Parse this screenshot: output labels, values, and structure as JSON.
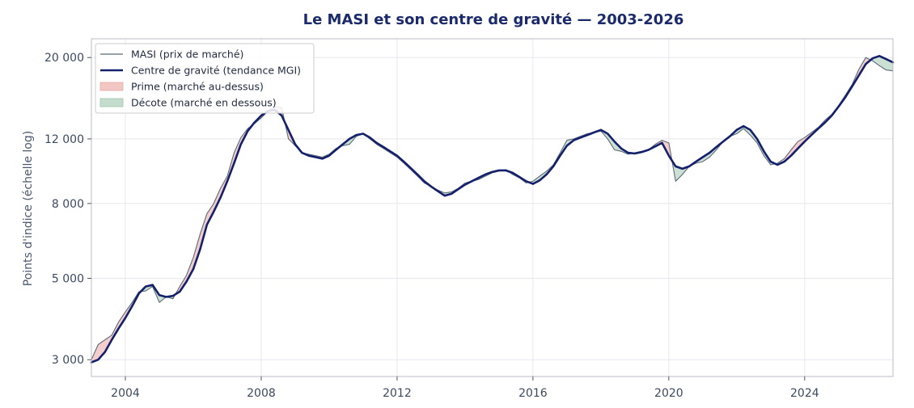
{
  "chart_data": {
    "type": "area",
    "title": "Le MASI et son centre de gravité — 2003-2026",
    "xlabel": "",
    "ylabel": "Points d'indice (échelle log)",
    "y_scale": "log",
    "xlim": [
      2003.0,
      2026.6
    ],
    "ylim": [
      2700,
      22500
    ],
    "grid": true,
    "legend_position": "top-left",
    "x_ticks": [
      {
        "value": 2004,
        "label": "2004"
      },
      {
        "value": 2008,
        "label": "2008"
      },
      {
        "value": 2012,
        "label": "2012"
      },
      {
        "value": 2016,
        "label": "2016"
      },
      {
        "value": 2020,
        "label": "2020"
      },
      {
        "value": 2024,
        "label": "2024"
      }
    ],
    "y_ticks": [
      {
        "value": 3000,
        "label": "3 000"
      },
      {
        "value": 5000,
        "label": "5 000"
      },
      {
        "value": 8000,
        "label": "8 000"
      },
      {
        "value": 12000,
        "label": "12 000"
      },
      {
        "value": 20000,
        "label": "20 000"
      }
    ],
    "colors": {
      "masi": "#5a6b78",
      "trend": "#14206b",
      "premium": "#f2c6c3",
      "discount": "#c3dccd",
      "grid": "#e6e8ee",
      "frame": "#b8bcc8",
      "title": "#1b2a6b"
    },
    "legend": [
      {
        "key": "masi",
        "label": "MASI (prix de marché)",
        "symbol": "thin-line"
      },
      {
        "key": "trend",
        "label": "Centre de gravité (tendance MGI)",
        "symbol": "thick-line"
      },
      {
        "key": "premium",
        "label": "Prime (marché au-dessus)",
        "symbol": "patch"
      },
      {
        "key": "discount",
        "label": "Décote (marché en dessous)",
        "symbol": "patch"
      }
    ],
    "series": [
      {
        "name": "MASI (prix de marché)",
        "x": [
          2003.0,
          2003.2,
          2003.4,
          2003.6,
          2003.8,
          2004.0,
          2004.2,
          2004.4,
          2004.6,
          2004.8,
          2005.0,
          2005.2,
          2005.4,
          2005.6,
          2005.8,
          2006.0,
          2006.2,
          2006.4,
          2006.6,
          2006.8,
          2007.0,
          2007.2,
          2007.4,
          2007.6,
          2007.8,
          2008.0,
          2008.2,
          2008.4,
          2008.6,
          2008.8,
          2009.0,
          2009.2,
          2009.4,
          2009.6,
          2009.8,
          2010.0,
          2010.2,
          2010.4,
          2010.6,
          2010.8,
          2011.0,
          2011.2,
          2011.4,
          2011.6,
          2011.8,
          2012.0,
          2012.2,
          2012.4,
          2012.6,
          2012.8,
          2013.0,
          2013.2,
          2013.4,
          2013.6,
          2013.8,
          2014.0,
          2014.2,
          2014.4,
          2014.6,
          2014.8,
          2015.0,
          2015.2,
          2015.4,
          2015.6,
          2015.8,
          2016.0,
          2016.2,
          2016.4,
          2016.6,
          2016.8,
          2017.0,
          2017.2,
          2017.4,
          2017.6,
          2017.8,
          2018.0,
          2018.2,
          2018.4,
          2018.6,
          2018.8,
          2019.0,
          2019.2,
          2019.4,
          2019.6,
          2019.8,
          2020.0,
          2020.2,
          2020.4,
          2020.6,
          2020.8,
          2021.0,
          2021.2,
          2021.4,
          2021.6,
          2021.8,
          2022.0,
          2022.2,
          2022.4,
          2022.6,
          2022.8,
          2023.0,
          2023.2,
          2023.4,
          2023.6,
          2023.8,
          2024.0,
          2024.2,
          2024.4,
          2024.6,
          2024.8,
          2025.0,
          2025.2,
          2025.4,
          2025.6,
          2025.8,
          2026.0,
          2026.2,
          2026.4,
          2026.6
        ],
        "values": [
          3000,
          3300,
          3400,
          3500,
          3800,
          4050,
          4300,
          4600,
          4620,
          4750,
          4300,
          4450,
          4400,
          4750,
          5100,
          5700,
          6600,
          7500,
          8000,
          8800,
          9500,
          11000,
          12100,
          12800,
          13200,
          13700,
          14300,
          14700,
          14600,
          12000,
          11500,
          11000,
          10900,
          10800,
          10700,
          10900,
          11300,
          11500,
          11600,
          12200,
          12400,
          12000,
          11600,
          11300,
          11000,
          10700,
          10300,
          9900,
          9500,
          9100,
          8900,
          8700,
          8550,
          8600,
          8800,
          9100,
          9200,
          9300,
          9500,
          9700,
          9800,
          9900,
          9600,
          9400,
          9100,
          9200,
          9500,
          9800,
          10200,
          11000,
          11900,
          12000,
          12200,
          12400,
          12500,
          12600,
          12000,
          11200,
          11100,
          10900,
          11000,
          11100,
          11200,
          11600,
          11900,
          11700,
          9200,
          9600,
          10100,
          10300,
          10400,
          10700,
          11200,
          11800,
          12200,
          12400,
          12800,
          12300,
          11700,
          10800,
          10200,
          10300,
          10600,
          11200,
          11800,
          12100,
          12500,
          12900,
          13500,
          14000,
          14800,
          15800,
          16900,
          18600,
          20000,
          19600,
          19000,
          18500,
          18400
        ]
      },
      {
        "name": "Centre de gravité (tendance MGI)",
        "x": [
          2003.0,
          2003.2,
          2003.4,
          2003.6,
          2003.8,
          2004.0,
          2004.2,
          2004.4,
          2004.6,
          2004.8,
          2005.0,
          2005.2,
          2005.4,
          2005.6,
          2005.8,
          2006.0,
          2006.2,
          2006.4,
          2006.6,
          2006.8,
          2007.0,
          2007.2,
          2007.4,
          2007.6,
          2007.8,
          2008.0,
          2008.2,
          2008.4,
          2008.6,
          2008.8,
          2009.0,
          2009.2,
          2009.4,
          2009.6,
          2009.8,
          2010.0,
          2010.2,
          2010.4,
          2010.6,
          2010.8,
          2011.0,
          2011.2,
          2011.4,
          2011.6,
          2011.8,
          2012.0,
          2012.2,
          2012.4,
          2012.6,
          2012.8,
          2013.0,
          2013.2,
          2013.4,
          2013.6,
          2013.8,
          2014.0,
          2014.2,
          2014.4,
          2014.6,
          2014.8,
          2015.0,
          2015.2,
          2015.4,
          2015.6,
          2015.8,
          2016.0,
          2016.2,
          2016.4,
          2016.6,
          2016.8,
          2017.0,
          2017.2,
          2017.4,
          2017.6,
          2017.8,
          2018.0,
          2018.2,
          2018.4,
          2018.6,
          2018.8,
          2019.0,
          2019.2,
          2019.4,
          2019.6,
          2019.8,
          2020.0,
          2020.2,
          2020.4,
          2020.6,
          2020.8,
          2021.0,
          2021.2,
          2021.4,
          2021.6,
          2021.8,
          2022.0,
          2022.2,
          2022.4,
          2022.6,
          2022.8,
          2023.0,
          2023.2,
          2023.4,
          2023.6,
          2023.8,
          2024.0,
          2024.2,
          2024.4,
          2024.6,
          2024.8,
          2025.0,
          2025.2,
          2025.4,
          2025.6,
          2025.8,
          2026.0,
          2026.2,
          2026.4,
          2026.6
        ],
        "values": [
          2950,
          3000,
          3150,
          3400,
          3650,
          3900,
          4200,
          4550,
          4750,
          4800,
          4500,
          4450,
          4480,
          4600,
          4900,
          5300,
          6000,
          7000,
          7600,
          8300,
          9200,
          10300,
          11600,
          12600,
          13300,
          13900,
          14300,
          14400,
          13900,
          12700,
          11600,
          11000,
          10800,
          10700,
          10600,
          10800,
          11200,
          11600,
          12000,
          12300,
          12400,
          12100,
          11700,
          11400,
          11100,
          10800,
          10400,
          10000,
          9600,
          9200,
          8900,
          8650,
          8400,
          8500,
          8750,
          9000,
          9200,
          9400,
          9600,
          9750,
          9850,
          9850,
          9700,
          9450,
          9200,
          9050,
          9250,
          9600,
          10100,
          10800,
          11500,
          11900,
          12100,
          12300,
          12500,
          12700,
          12400,
          11800,
          11300,
          11000,
          10950,
          11050,
          11200,
          11450,
          11700,
          10800,
          10100,
          9950,
          10100,
          10400,
          10700,
          11000,
          11400,
          11800,
          12200,
          12700,
          13000,
          12700,
          12000,
          11100,
          10400,
          10200,
          10400,
          10800,
          11300,
          11800,
          12300,
          12800,
          13300,
          13900,
          14700,
          15600,
          16700,
          17900,
          19200,
          19900,
          20200,
          19800,
          19400
        ]
      }
    ]
  }
}
